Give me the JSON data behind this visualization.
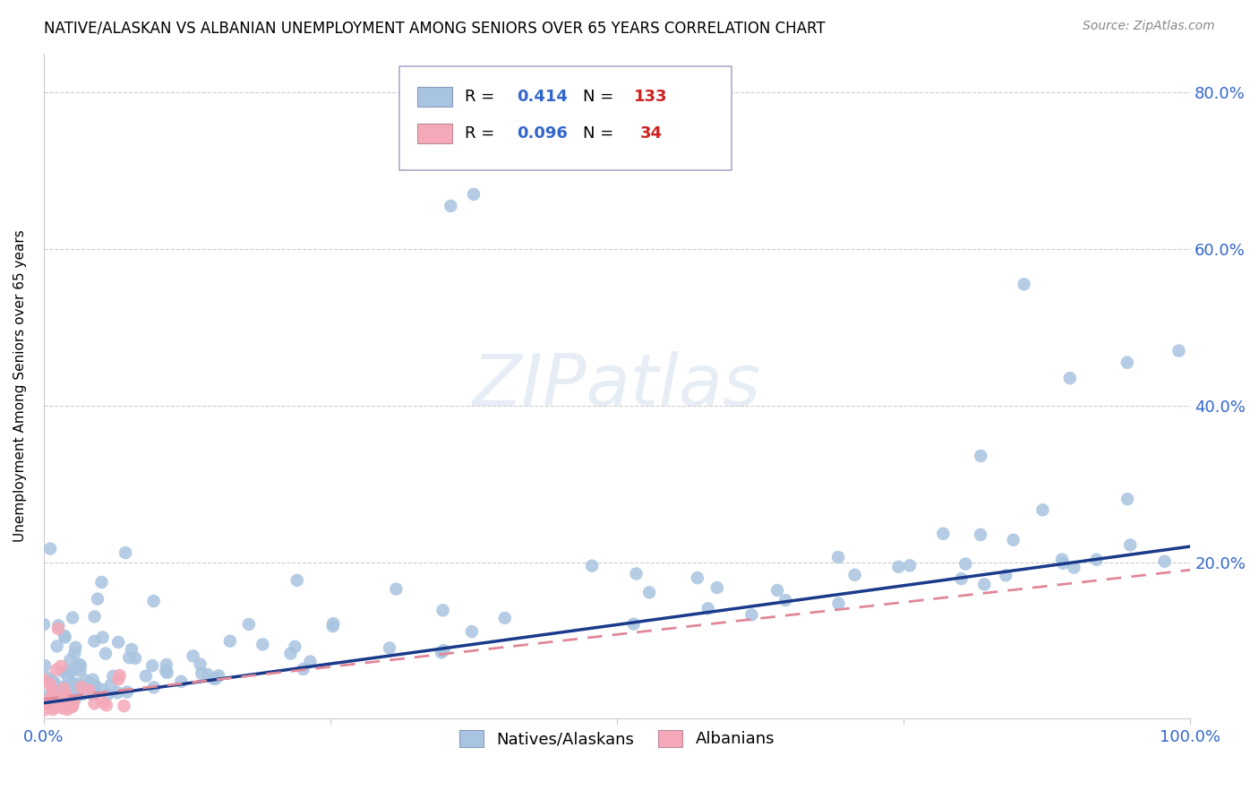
{
  "title": "NATIVE/ALASKAN VS ALBANIAN UNEMPLOYMENT AMONG SENIORS OVER 65 YEARS CORRELATION CHART",
  "source": "Source: ZipAtlas.com",
  "ylabel": "Unemployment Among Seniors over 65 years",
  "xlim": [
    0.0,
    1.0
  ],
  "ylim": [
    0.0,
    0.85
  ],
  "xticks": [
    0.0,
    0.25,
    0.5,
    0.75,
    1.0
  ],
  "xticklabels": [
    "0.0%",
    "",
    "",
    "",
    "100.0%"
  ],
  "ytick_vals": [
    0.2,
    0.4,
    0.6,
    0.8
  ],
  "ytick_labels": [
    "20.0%",
    "40.0%",
    "60.0%",
    "80.0%"
  ],
  "native_color": "#a8c4e0",
  "albanian_color": "#f4a8b8",
  "native_line_color": "#1a3a8a",
  "albanian_line_color": "#e08898",
  "legend_R_native": "0.414",
  "legend_N_native": "133",
  "legend_R_albanian": "0.096",
  "legend_N_albanian": "34",
  "watermark": "ZIPatlas",
  "background_color": "#ffffff",
  "grid_color": "#cccccc",
  "tick_label_color": "#3366cc",
  "R_color": "#3366cc",
  "N_color": "#cc2222",
  "native_trend": [
    0.0,
    1.0,
    0.02,
    0.22
  ],
  "albanian_trend": [
    0.0,
    1.0,
    0.025,
    0.19
  ]
}
